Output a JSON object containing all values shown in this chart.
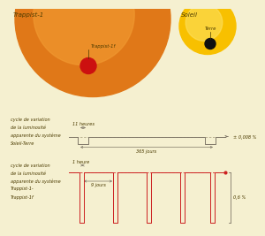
{
  "bg_color": "#f5f0d0",
  "star_bg_color": "#f8e070",
  "trappist1_color_outer": "#e07818",
  "trappist1_color_inner": "#f09830",
  "soleil_color_outer": "#f8c000",
  "soleil_color_inner": "#fde060",
  "planet_f_color": "#cc1010",
  "planet_terre_color": "#101010",
  "text_color": "#4a3a00",
  "line_color_gray": "#807868",
  "line_color_red": "#cc2020",
  "dashed_color_gray": "#b0a888",
  "dashed_color_red": "#dd3333",
  "title_trappist": "Trappist-1",
  "title_soleil": "Soleil",
  "label_trappist1f": "Trappist-1f",
  "label_terre": "Terre",
  "label_cycle1": [
    "cycle de variation",
    "de la luminosité",
    "apparente du système",
    "Soleil-Terre"
  ],
  "label_cycle2": [
    "cycle de variation",
    "de la luminosité",
    "apparente du système",
    "Trappist-1-",
    "Trappist-1f"
  ],
  "label_11h": "11 heures",
  "label_365j": "365 jours",
  "label_0008": "± 0,008 %",
  "label_1h": "1 heure",
  "label_9j": "9 jours",
  "label_06": "0,6 %",
  "fs_title": 5.0,
  "fs_label": 3.8,
  "fs_annot": 3.6
}
